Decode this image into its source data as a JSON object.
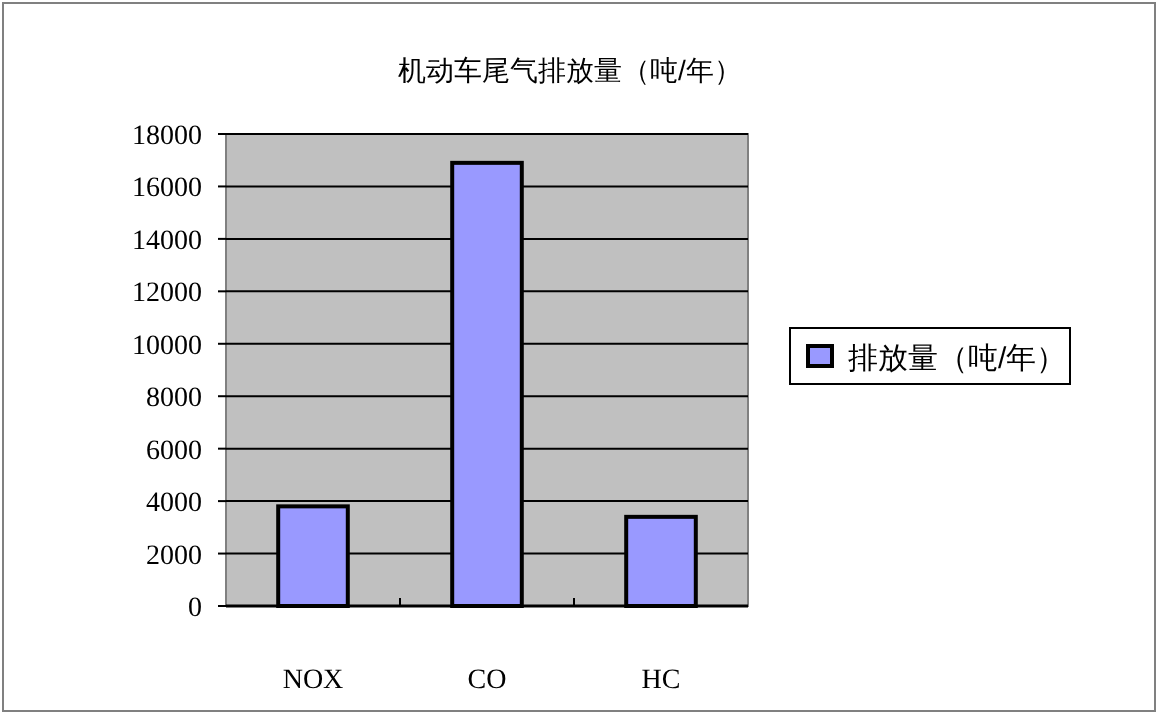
{
  "chart_data": {
    "type": "bar",
    "title": "机动车尾气排放量（吨/年）",
    "categories": [
      "NOX",
      "CO",
      "HC"
    ],
    "series": [
      {
        "name": "排放量（吨/年）",
        "color": "#9999ff",
        "values": [
          3800,
          16900,
          3400
        ]
      }
    ],
    "ylim": [
      0,
      18000
    ],
    "yticks": [
      0,
      2000,
      4000,
      6000,
      8000,
      10000,
      12000,
      14000,
      16000,
      18000
    ],
    "grid": "y",
    "legend": "right"
  }
}
